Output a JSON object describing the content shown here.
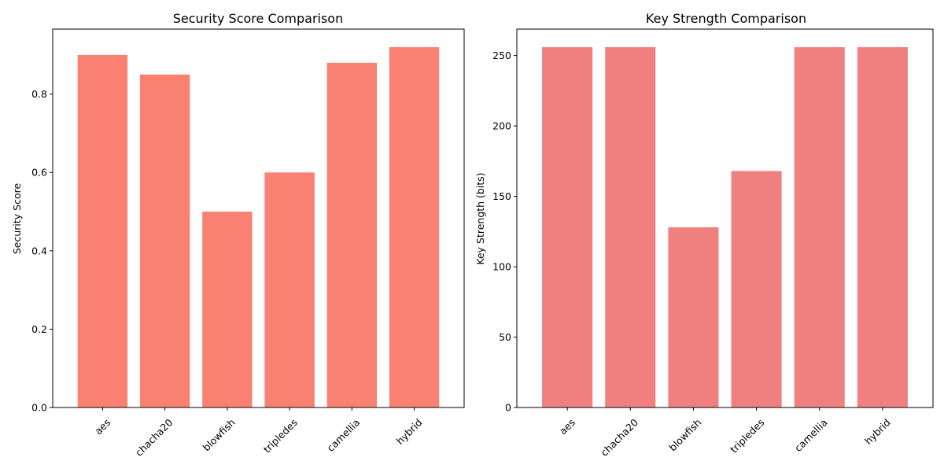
{
  "chart_data": [
    {
      "type": "bar",
      "title": "Security Score Comparison",
      "xlabel": "",
      "ylabel": "Security Score",
      "categories": [
        "aes",
        "chacha20",
        "blowfish",
        "tripledes",
        "camellia",
        "hybrid"
      ],
      "values": [
        0.9,
        0.85,
        0.5,
        0.6,
        0.88,
        0.92
      ],
      "ylim": [
        0,
        0.966
      ],
      "yticks": [
        0,
        0.2,
        0.4,
        0.6,
        0.8
      ],
      "ytick_labels": [
        "0.0",
        "0.2",
        "0.4",
        "0.6",
        "0.8"
      ],
      "color": "#fa8072",
      "grid": false
    },
    {
      "type": "bar",
      "title": "Key Strength Comparison",
      "xlabel": "",
      "ylabel": "Key Strength (bits)",
      "categories": [
        "aes",
        "chacha20",
        "blowfish",
        "tripledes",
        "camellia",
        "hybrid"
      ],
      "values": [
        256,
        256,
        128,
        168,
        256,
        256
      ],
      "ylim": [
        0,
        268.8
      ],
      "yticks": [
        0,
        50,
        100,
        150,
        200,
        250
      ],
      "ytick_labels": [
        "0",
        "50",
        "100",
        "150",
        "200",
        "250"
      ],
      "color": "#f08080",
      "grid": false
    }
  ]
}
